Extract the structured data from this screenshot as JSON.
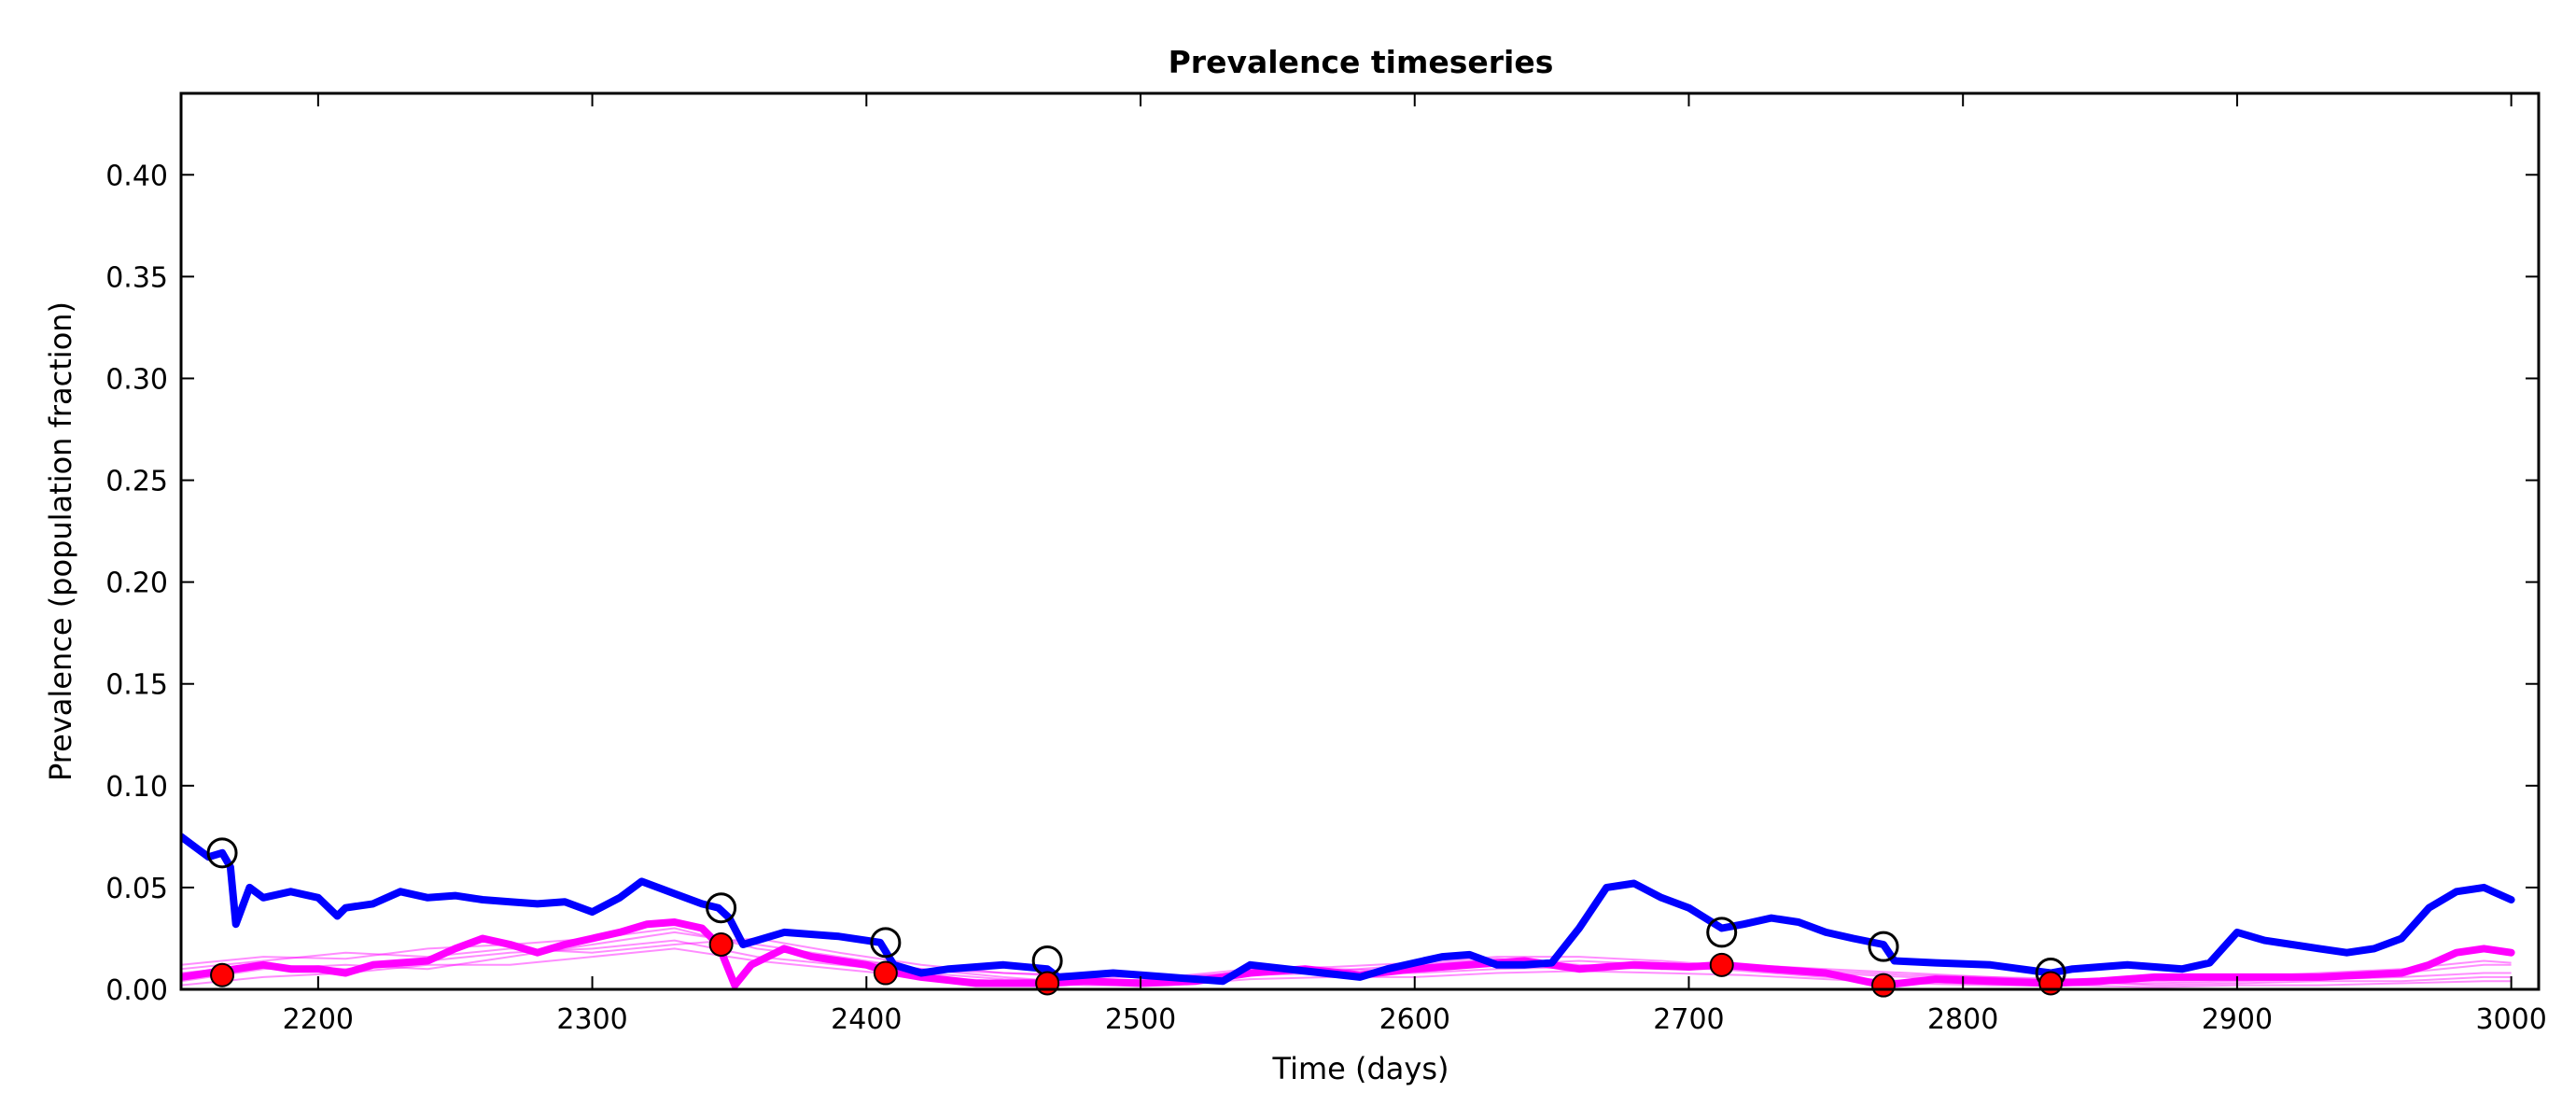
{
  "chart_data": {
    "type": "line",
    "title": "Prevalence timeseries",
    "xlabel": "Time (days)",
    "ylabel": "Prevalence (population fraction)",
    "xlim": [
      2150,
      3010
    ],
    "ylim": [
      0,
      0.44
    ],
    "x_ticks": [
      2200,
      2300,
      2400,
      2500,
      2600,
      2700,
      2800,
      2900,
      3000
    ],
    "y_ticks": [
      0.0,
      0.05,
      0.1,
      0.15,
      0.2,
      0.25,
      0.3,
      0.35,
      0.4
    ],
    "x_tick_labels": [
      "2200",
      "2300",
      "2400",
      "2500",
      "2600",
      "2700",
      "2800",
      "2900",
      "3000"
    ],
    "y_tick_labels": [
      "0.00",
      "0.05",
      "0.10",
      "0.15",
      "0.20",
      "0.25",
      "0.30",
      "0.35",
      "0.40"
    ],
    "grid": false,
    "series": [
      {
        "key": "blue",
        "style": "thick-line",
        "color": "#0000ff",
        "x": [
          2150,
          2155,
          2160,
          2165,
          2168,
          2170,
          2175,
          2180,
          2190,
          2200,
          2207,
          2210,
          2220,
          2230,
          2240,
          2250,
          2260,
          2270,
          2280,
          2290,
          2300,
          2310,
          2318,
          2330,
          2340,
          2346,
          2350,
          2355,
          2370,
          2390,
          2405,
          2410,
          2420,
          2430,
          2450,
          2466,
          2470,
          2490,
          2510,
          2530,
          2540,
          2560,
          2580,
          2590,
          2600,
          2610,
          2620,
          2630,
          2640,
          2650,
          2660,
          2670,
          2680,
          2690,
          2700,
          2712,
          2720,
          2730,
          2740,
          2750,
          2760,
          2771,
          2775,
          2790,
          2810,
          2832,
          2840,
          2860,
          2880,
          2890,
          2900,
          2910,
          2920,
          2930,
          2940,
          2950,
          2960,
          2970,
          2980,
          2990,
          3000
        ],
        "y": [
          0.075,
          0.07,
          0.065,
          0.067,
          0.06,
          0.032,
          0.05,
          0.045,
          0.048,
          0.045,
          0.036,
          0.04,
          0.042,
          0.048,
          0.045,
          0.046,
          0.044,
          0.043,
          0.042,
          0.043,
          0.038,
          0.045,
          0.053,
          0.047,
          0.042,
          0.04,
          0.035,
          0.022,
          0.028,
          0.026,
          0.023,
          0.012,
          0.008,
          0.01,
          0.012,
          0.01,
          0.006,
          0.008,
          0.006,
          0.004,
          0.012,
          0.009,
          0.006,
          0.01,
          0.013,
          0.016,
          0.017,
          0.012,
          0.012,
          0.013,
          0.03,
          0.05,
          0.052,
          0.045,
          0.04,
          0.03,
          0.032,
          0.035,
          0.033,
          0.028,
          0.025,
          0.022,
          0.014,
          0.013,
          0.012,
          0.008,
          0.01,
          0.012,
          0.01,
          0.013,
          0.028,
          0.024,
          0.022,
          0.02,
          0.018,
          0.02,
          0.025,
          0.04,
          0.048,
          0.05,
          0.044
        ]
      },
      {
        "key": "magenta",
        "style": "thick-line",
        "color": "#ff00ff",
        "x": [
          2150,
          2160,
          2170,
          2180,
          2190,
          2200,
          2210,
          2220,
          2240,
          2250,
          2260,
          2270,
          2280,
          2290,
          2300,
          2310,
          2320,
          2330,
          2340,
          2346,
          2352,
          2358,
          2370,
          2380,
          2390,
          2400,
          2407,
          2420,
          2440,
          2466,
          2480,
          2500,
          2520,
          2540,
          2560,
          2580,
          2600,
          2620,
          2640,
          2660,
          2680,
          2700,
          2712,
          2730,
          2750,
          2771,
          2790,
          2810,
          2832,
          2850,
          2870,
          2900,
          2930,
          2960,
          2970,
          2980,
          2990,
          3000
        ],
        "y": [
          0.006,
          0.008,
          0.01,
          0.012,
          0.01,
          0.01,
          0.008,
          0.012,
          0.014,
          0.02,
          0.025,
          0.022,
          0.018,
          0.022,
          0.025,
          0.028,
          0.032,
          0.033,
          0.03,
          0.022,
          0.002,
          0.012,
          0.02,
          0.016,
          0.014,
          0.012,
          0.009,
          0.006,
          0.003,
          0.003,
          0.004,
          0.003,
          0.004,
          0.008,
          0.01,
          0.007,
          0.01,
          0.012,
          0.014,
          0.01,
          0.012,
          0.011,
          0.012,
          0.01,
          0.008,
          0.002,
          0.005,
          0.004,
          0.003,
          0.004,
          0.006,
          0.006,
          0.006,
          0.008,
          0.012,
          0.018,
          0.02,
          0.018
        ]
      }
    ],
    "faint_series": [
      {
        "color": "#ff00ff",
        "x": [
          2150,
          2180,
          2210,
          2240,
          2270,
          2300,
          2330,
          2360,
          2390,
          2420,
          2450,
          2480,
          2510,
          2540,
          2570,
          2600,
          2630,
          2660,
          2690,
          2720,
          2750,
          2780,
          2810,
          2840,
          2870,
          2900,
          2930,
          2960,
          2990,
          3000
        ],
        "y": [
          0.012,
          0.016,
          0.015,
          0.02,
          0.022,
          0.025,
          0.03,
          0.02,
          0.015,
          0.01,
          0.008,
          0.006,
          0.006,
          0.008,
          0.009,
          0.012,
          0.015,
          0.012,
          0.01,
          0.01,
          0.008,
          0.006,
          0.005,
          0.004,
          0.004,
          0.005,
          0.006,
          0.008,
          0.012,
          0.012
        ]
      },
      {
        "color": "#ff00ff",
        "x": [
          2150,
          2180,
          2210,
          2240,
          2270,
          2300,
          2330,
          2360,
          2390,
          2420,
          2450,
          2480,
          2510,
          2540,
          2570,
          2600,
          2630,
          2660,
          2690,
          2720,
          2750,
          2780,
          2810,
          2840,
          2870,
          2900,
          2930,
          2960,
          2990,
          3000
        ],
        "y": [
          0.008,
          0.012,
          0.01,
          0.014,
          0.018,
          0.02,
          0.024,
          0.016,
          0.012,
          0.008,
          0.005,
          0.004,
          0.005,
          0.009,
          0.01,
          0.009,
          0.012,
          0.014,
          0.012,
          0.009,
          0.006,
          0.004,
          0.004,
          0.003,
          0.003,
          0.004,
          0.005,
          0.006,
          0.008,
          0.008
        ]
      },
      {
        "color": "#ff00ff",
        "x": [
          2150,
          2180,
          2210,
          2240,
          2270,
          2300,
          2330,
          2360,
          2390,
          2420,
          2450,
          2480,
          2510,
          2540,
          2570,
          2600,
          2630,
          2660,
          2690,
          2720,
          2750,
          2780,
          2810,
          2840,
          2870,
          2900,
          2930,
          2960,
          2990,
          3000
        ],
        "y": [
          0.004,
          0.01,
          0.012,
          0.01,
          0.016,
          0.022,
          0.028,
          0.022,
          0.016,
          0.01,
          0.006,
          0.003,
          0.003,
          0.007,
          0.008,
          0.008,
          0.01,
          0.011,
          0.01,
          0.012,
          0.01,
          0.008,
          0.006,
          0.004,
          0.002,
          0.003,
          0.004,
          0.004,
          0.006,
          0.006
        ]
      },
      {
        "color": "#ff00ff",
        "x": [
          2150,
          2180,
          2210,
          2240,
          2270,
          2300,
          2330,
          2360,
          2390,
          2420,
          2450,
          2480,
          2510,
          2540,
          2570,
          2600,
          2630,
          2660,
          2690,
          2720,
          2750,
          2780,
          2810,
          2840,
          2870,
          2900,
          2930,
          2960,
          2990,
          3000
        ],
        "y": [
          0.01,
          0.014,
          0.018,
          0.016,
          0.02,
          0.018,
          0.022,
          0.025,
          0.018,
          0.012,
          0.008,
          0.007,
          0.006,
          0.01,
          0.011,
          0.013,
          0.016,
          0.016,
          0.014,
          0.011,
          0.009,
          0.007,
          0.006,
          0.005,
          0.005,
          0.006,
          0.008,
          0.01,
          0.014,
          0.013
        ]
      },
      {
        "color": "#ff00ff",
        "x": [
          2150,
          2180,
          2210,
          2240,
          2270,
          2300,
          2330,
          2360,
          2390,
          2420,
          2450,
          2480,
          2510,
          2540,
          2570,
          2600,
          2630,
          2660,
          2690,
          2720,
          2750,
          2780,
          2810,
          2840,
          2870,
          2900,
          2930,
          2960,
          2990,
          3000
        ],
        "y": [
          0.002,
          0.006,
          0.008,
          0.012,
          0.012,
          0.016,
          0.02,
          0.014,
          0.01,
          0.006,
          0.004,
          0.002,
          0.002,
          0.005,
          0.006,
          0.006,
          0.008,
          0.009,
          0.008,
          0.007,
          0.005,
          0.003,
          0.002,
          0.002,
          0.001,
          0.002,
          0.002,
          0.003,
          0.004,
          0.004
        ]
      }
    ],
    "markers": {
      "open_circles": {
        "stroke": "#000000",
        "x": [
          2165,
          2347,
          2407,
          2466,
          2712,
          2771,
          2832
        ],
        "y": [
          0.067,
          0.04,
          0.023,
          0.014,
          0.028,
          0.021,
          0.008
        ]
      },
      "red_dots": {
        "fill": "#ff0000",
        "stroke": "#000000",
        "x": [
          2165,
          2347,
          2407,
          2466,
          2712,
          2771,
          2832
        ],
        "y": [
          0.007,
          0.022,
          0.008,
          0.003,
          0.012,
          0.002,
          0.003
        ]
      }
    }
  }
}
